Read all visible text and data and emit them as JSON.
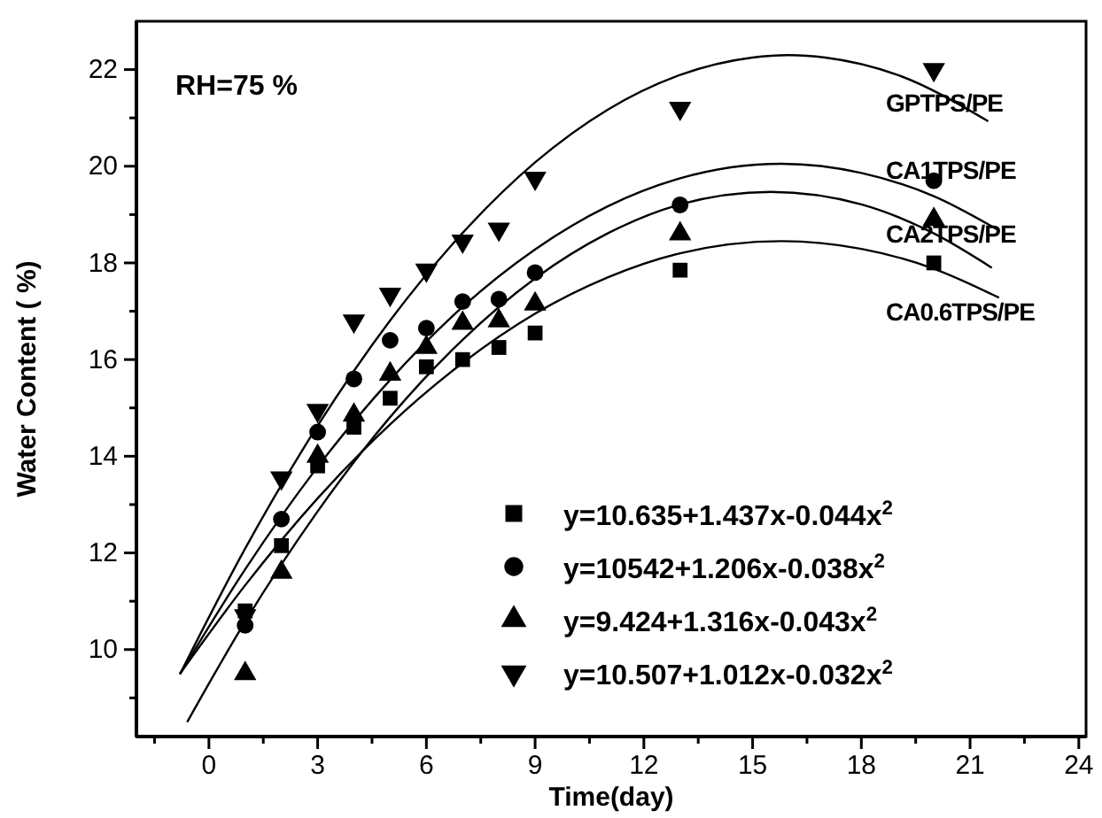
{
  "chart_data": {
    "type": "scatter",
    "xlabel": "Time(day)",
    "ylabel": "Water Content ( %)",
    "xlim": [
      -2,
      24.2
    ],
    "ylim": [
      8.2,
      23
    ],
    "xticks": [
      {
        "value": -1.5,
        "label": null
      },
      0,
      {
        "value": 1.5,
        "label": null
      },
      3,
      {
        "value": 4.5,
        "label": null
      },
      6,
      {
        "value": 7.5,
        "label": null
      },
      9,
      {
        "value": 10.5,
        "label": null
      },
      12,
      {
        "value": 13.5,
        "label": null
      },
      15,
      {
        "value": 16.5,
        "label": null
      },
      18,
      {
        "value": 19.5,
        "label": null
      },
      21,
      {
        "value": 22.5,
        "label": null
      },
      24
    ],
    "yticks": [
      {
        "value": 9,
        "label": null
      },
      10,
      {
        "value": 11,
        "label": null
      },
      12,
      {
        "value": 13,
        "label": null
      },
      14,
      {
        "value": 15,
        "label": null
      },
      16,
      {
        "value": 17,
        "label": null
      },
      18,
      {
        "value": 19,
        "label": null
      },
      20,
      {
        "value": 21,
        "label": null
      },
      22
    ],
    "legend": "bottom right",
    "grid": false,
    "annotations": [
      "RH=75 %",
      "GPTPS/PE",
      "CA1TPS/PE",
      "CA2TPS/PE",
      "CA0.6TPS/PE"
    ],
    "series": [
      {
        "name": "y=10.635+1.437x-0.044x$^{2}$",
        "marker": "square",
        "color": "#000000",
        "x": [
          1,
          2,
          3,
          4,
          5,
          6,
          7,
          8,
          9,
          13,
          20
        ],
        "values": [
          10.8,
          12.15,
          13.8,
          14.6,
          15.2,
          15.85,
          16.0,
          16.25,
          16.55,
          17.85,
          18.0
        ]
      },
      {
        "name": "y=10542+1.206x-0.038x$^{2}$",
        "marker": "circle",
        "color": "#000000",
        "x": [
          1,
          2,
          3,
          4,
          5,
          6,
          7,
          8,
          9,
          13,
          20
        ],
        "values": [
          10.5,
          12.7,
          14.5,
          15.6,
          16.4,
          16.65,
          17.2,
          17.25,
          17.8,
          19.2,
          19.7
        ]
      },
      {
        "name": "y=9.424+1.316x-0.043x$^{2}$",
        "marker": "triangle",
        "color": "#000000",
        "x": [
          1,
          2,
          3,
          4,
          5,
          6,
          7,
          8,
          9,
          13,
          20
        ],
        "values": [
          9.5,
          11.6,
          14.0,
          14.85,
          15.7,
          16.25,
          16.75,
          16.8,
          17.15,
          18.6,
          18.9
        ]
      },
      {
        "name": "y=10.507+1.012x-0.032x$^{2}$",
        "marker": "triangle-down",
        "color": "#000000",
        "x": [
          1,
          2,
          3,
          4,
          5,
          6,
          7,
          8,
          9,
          13,
          20
        ],
        "values": [
          10.7,
          13.55,
          14.95,
          16.8,
          17.35,
          17.85,
          18.45,
          18.7,
          19.75,
          21.2,
          22.0
        ]
      },
      {
        "type": "line",
        "marker": "none",
        "line_style": "solid",
        "color": "#000000",
        "x": [
          -0.8,
          1,
          3,
          5,
          7,
          9,
          11,
          13,
          15,
          16,
          17,
          19,
          21.5
        ],
        "values": [
          9.49,
          12.09,
          14.63,
          16.81,
          18.62,
          20.08,
          21.17,
          21.89,
          22.25,
          22.3,
          22.25,
          21.89,
          20.93
        ]
      },
      {
        "type": "line",
        "marker": "none",
        "line_style": "solid",
        "color": "#000000",
        "x": [
          -0.8,
          1,
          3,
          5,
          7,
          9,
          11,
          13,
          15.8,
          18,
          20,
          21.8
        ],
        "values": [
          9.49,
          11.66,
          13.78,
          15.58,
          17.09,
          18.28,
          19.17,
          19.75,
          20.05,
          19.86,
          19.38,
          18.67
        ]
      },
      {
        "type": "line",
        "marker": "none",
        "line_style": "solid",
        "color": "#000000",
        "x": [
          -0.6,
          1,
          3,
          5,
          7,
          9,
          11,
          13,
          15.5,
          18,
          20,
          21.6
        ],
        "values": [
          8.5,
          10.58,
          12.86,
          14.81,
          16.41,
          17.68,
          18.61,
          19.21,
          19.47,
          19.21,
          18.61,
          17.9
        ]
      },
      {
        "type": "line",
        "marker": "none",
        "line_style": "solid",
        "color": "#000000",
        "x": [
          -0.8,
          1,
          3,
          5,
          7,
          9,
          11,
          13,
          15.8,
          18,
          20,
          21.8
        ],
        "values": [
          9.5,
          11.33,
          13.13,
          14.66,
          15.93,
          16.95,
          17.7,
          18.2,
          18.45,
          18.29,
          17.88,
          17.28
        ]
      }
    ]
  }
}
